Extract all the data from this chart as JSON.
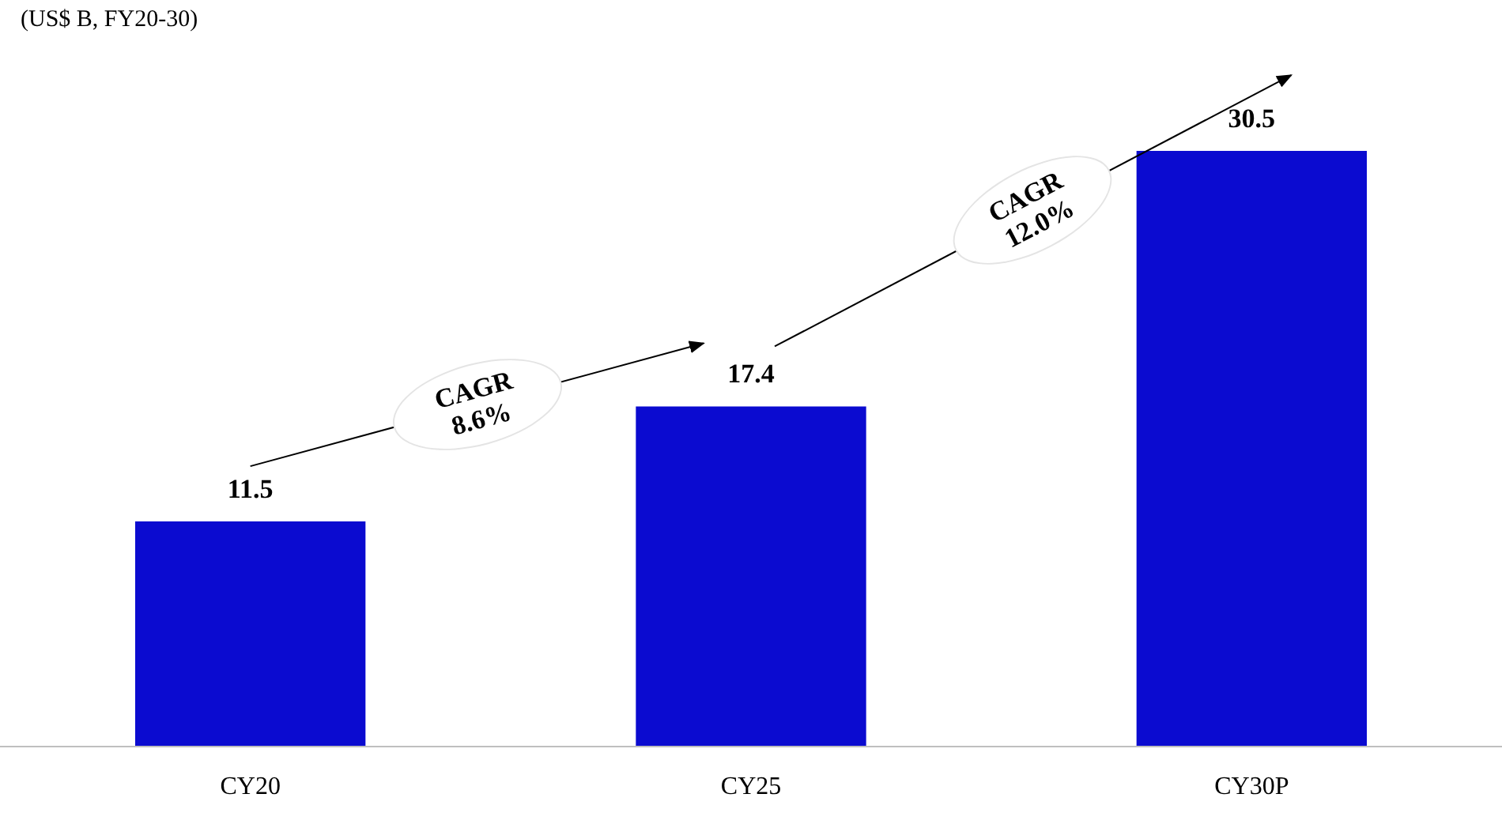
{
  "chart_data": {
    "type": "bar",
    "subtitle": "(US$ B, FY20-30)",
    "categories": [
      "CY20",
      "CY25",
      "CY30P"
    ],
    "values": [
      11.5,
      17.4,
      30.5
    ],
    "color": "#0b0bd0",
    "data_labels": true,
    "annotations": [
      "CAGR 8.6%",
      "CAGR 12.0%"
    ]
  }
}
